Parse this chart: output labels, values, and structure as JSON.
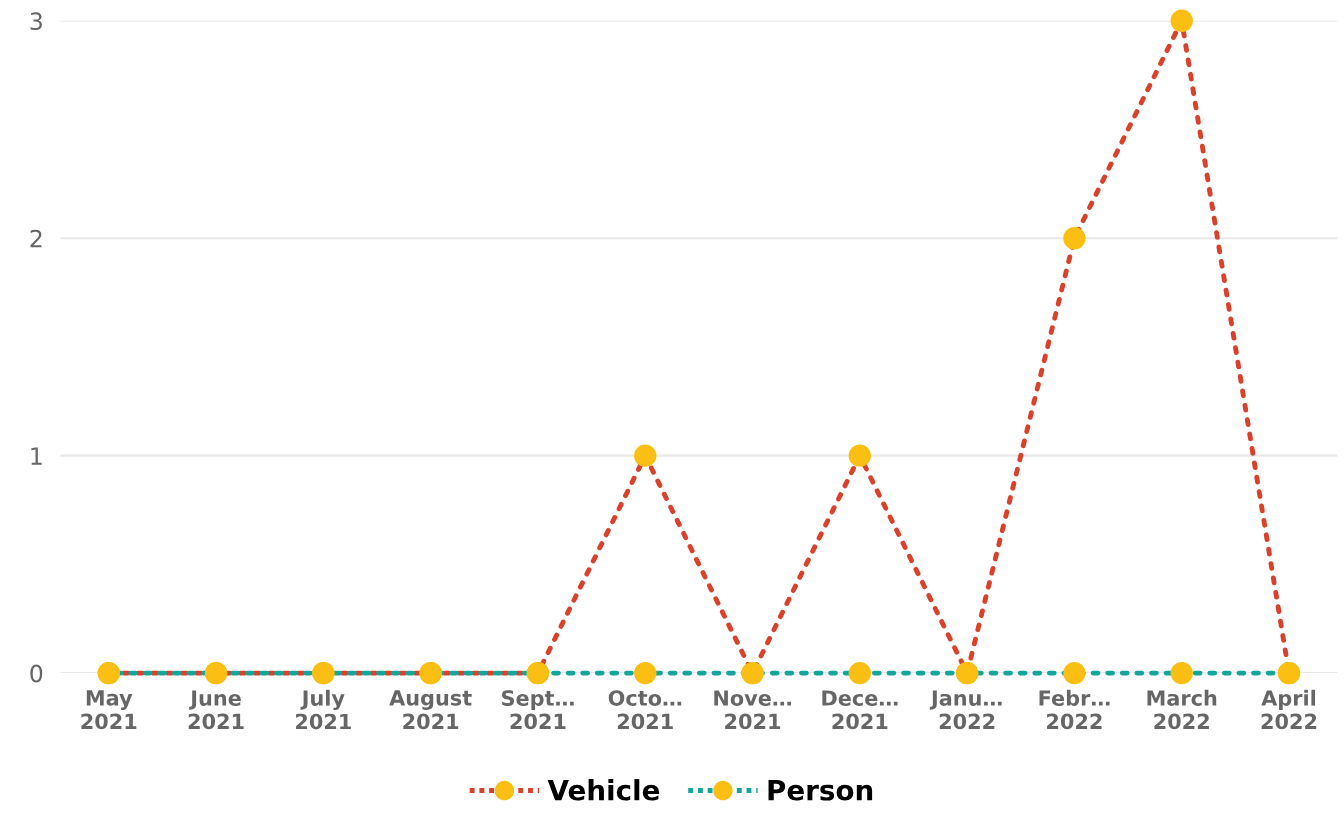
{
  "chart_data": {
    "type": "line",
    "categories": [
      "May\n2021",
      "June\n2021",
      "July\n2021",
      "August\n2021",
      "Sept…\n2021",
      "Octo…\n2021",
      "Nove…\n2021",
      "Dece…\n2021",
      "Janu…\n2022",
      "Febr…\n2022",
      "March\n2022",
      "April\n2022"
    ],
    "series": [
      {
        "name": "Vehicle",
        "color": "#d9412b",
        "colors": [
          "#fbbf14",
          "#fbbf14",
          "#fbbf14",
          "#fbbf14",
          "#fbbf14",
          "#fbbf14",
          "#fbbf14",
          "#fbbf14",
          "#fbbf14",
          "#fbbf14",
          "#fbbf14",
          "#fbbf14"
        ],
        "values": [
          0,
          0,
          0,
          0,
          0,
          1,
          0,
          1,
          0,
          2,
          3,
          0
        ]
      },
      {
        "name": "Person",
        "color": "#14a59b",
        "colors": [
          "#fbbf14",
          "#fbbf14",
          "#fbbf14",
          "#fbbf14",
          "#fbbf14",
          "#fbbf14",
          "#fbbf14",
          "#fbbf14",
          "#fbbf14",
          "#fbbf14",
          "#fbbf14",
          "#fbbf14"
        ],
        "values": [
          0,
          0,
          0,
          0,
          0,
          0,
          0,
          0,
          0,
          0,
          0,
          0
        ]
      }
    ],
    "ylim": [
      0,
      3
    ],
    "yticks": [
      0,
      1,
      2,
      3
    ],
    "grid": "y",
    "legend": "bottom",
    "marker": "circle",
    "line_style": "dotted"
  }
}
